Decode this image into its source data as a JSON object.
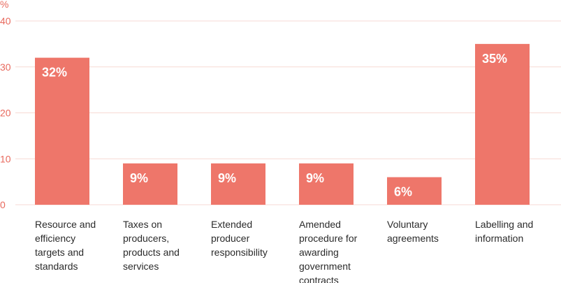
{
  "chart_data": {
    "type": "bar",
    "ylabel": "%",
    "yticks": [
      "0",
      "10",
      "20",
      "30",
      "40"
    ],
    "ylim": [
      0,
      40
    ],
    "grid": true,
    "categories": [
      [
        "Resource and",
        "efficiency",
        "targets and",
        "standards"
      ],
      [
        "Taxes on",
        "producers,",
        "products and",
        "services"
      ],
      [
        "Extended",
        "producer",
        "responsibility"
      ],
      [
        "Amended",
        "procedure for",
        "awarding",
        "government",
        "contracts"
      ],
      [
        "Voluntary",
        "agreements"
      ],
      [
        "Labelling and",
        "information"
      ]
    ],
    "values": [
      32,
      9,
      9,
      9,
      6,
      35
    ],
    "value_labels": [
      "32%",
      "9%",
      "9%",
      "9%",
      "6%",
      "35%"
    ]
  },
  "colors": {
    "bar": "#ee766a",
    "axis_text": "#e8695d",
    "grid": "#f7d9d4",
    "bar_text": "#ffffff",
    "category_text": "#2b2b2b"
  }
}
